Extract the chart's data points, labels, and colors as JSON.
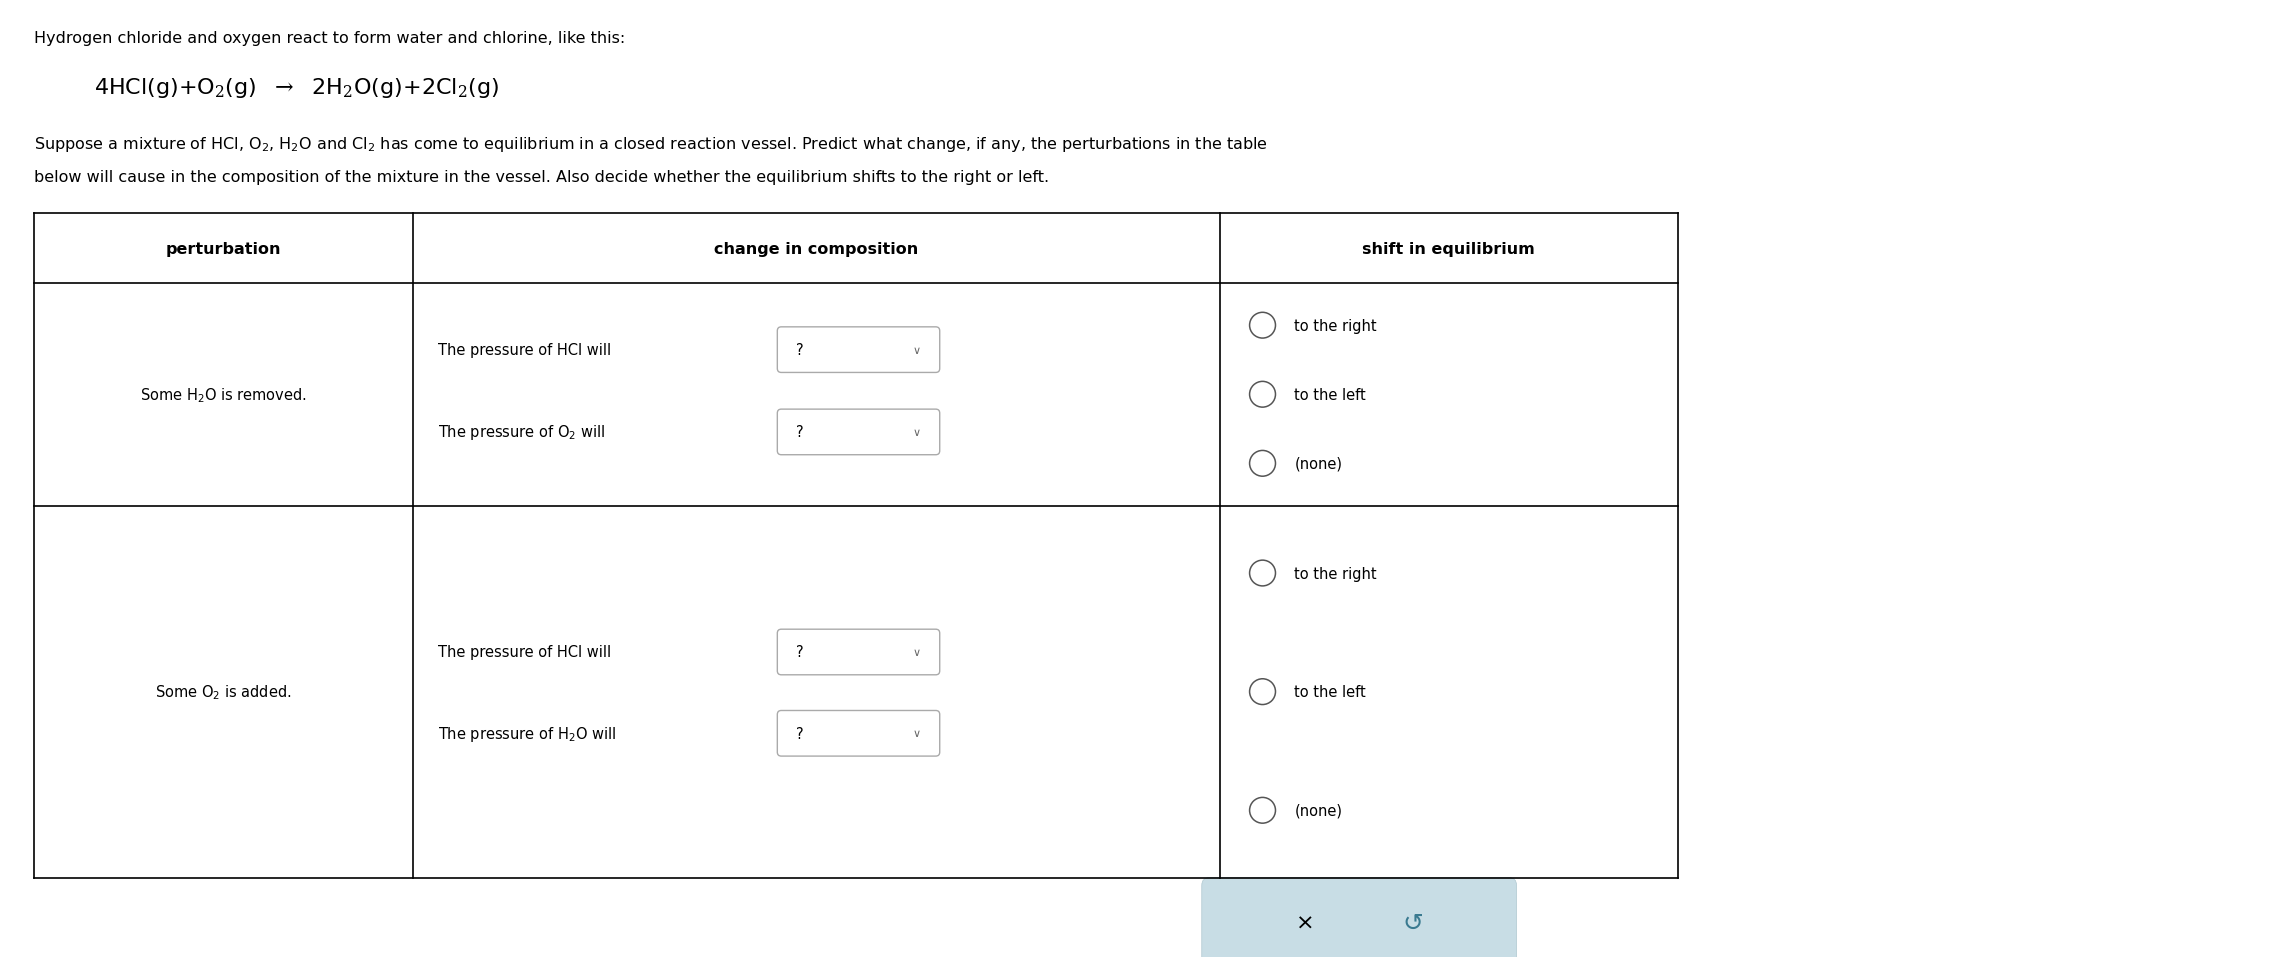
{
  "bg_color": "#ffffff",
  "title_line1": "Hydrogen chloride and oxygen react to form water and chlorine, like this:",
  "para1": "Suppose a mixture of HCl, O$_2$, H$_2$O and Cl$_2$ has come to equilibrium in a closed reaction vessel. Predict what change, if any, the perturbations in the table",
  "para2": "below will cause in the composition of the mixture in the vessel. Also decide whether the equilibrium shifts to the right or left.",
  "col_headers": [
    "perturbation",
    "change in composition",
    "shift in equilibrium"
  ],
  "row1_perturbation": "Some H$_2$O is removed.",
  "row1_change1": "The pressure of HCl will",
  "row1_change2": "The pressure of O$_2$ will",
  "row1_shift": [
    "to the right",
    "to the left",
    "(none)"
  ],
  "row2_perturbation": "Some O$_2$ is added.",
  "row2_change1": "The pressure of HCl will",
  "row2_change2": "The pressure of H$_2$O will",
  "row2_shift": [
    "to the right",
    "to the left",
    "(none)"
  ],
  "border_color": "#000000",
  "radio_color": "#555555",
  "dropdown_border": "#aaaaaa",
  "footer_bg": "#c8dde5",
  "footer_color": "#3a7a90",
  "text_color": "#000000",
  "fs_title": 11.5,
  "fs_eq": 16,
  "fs_para": 11.5,
  "fs_cell": 10.5,
  "fs_header": 11.5
}
